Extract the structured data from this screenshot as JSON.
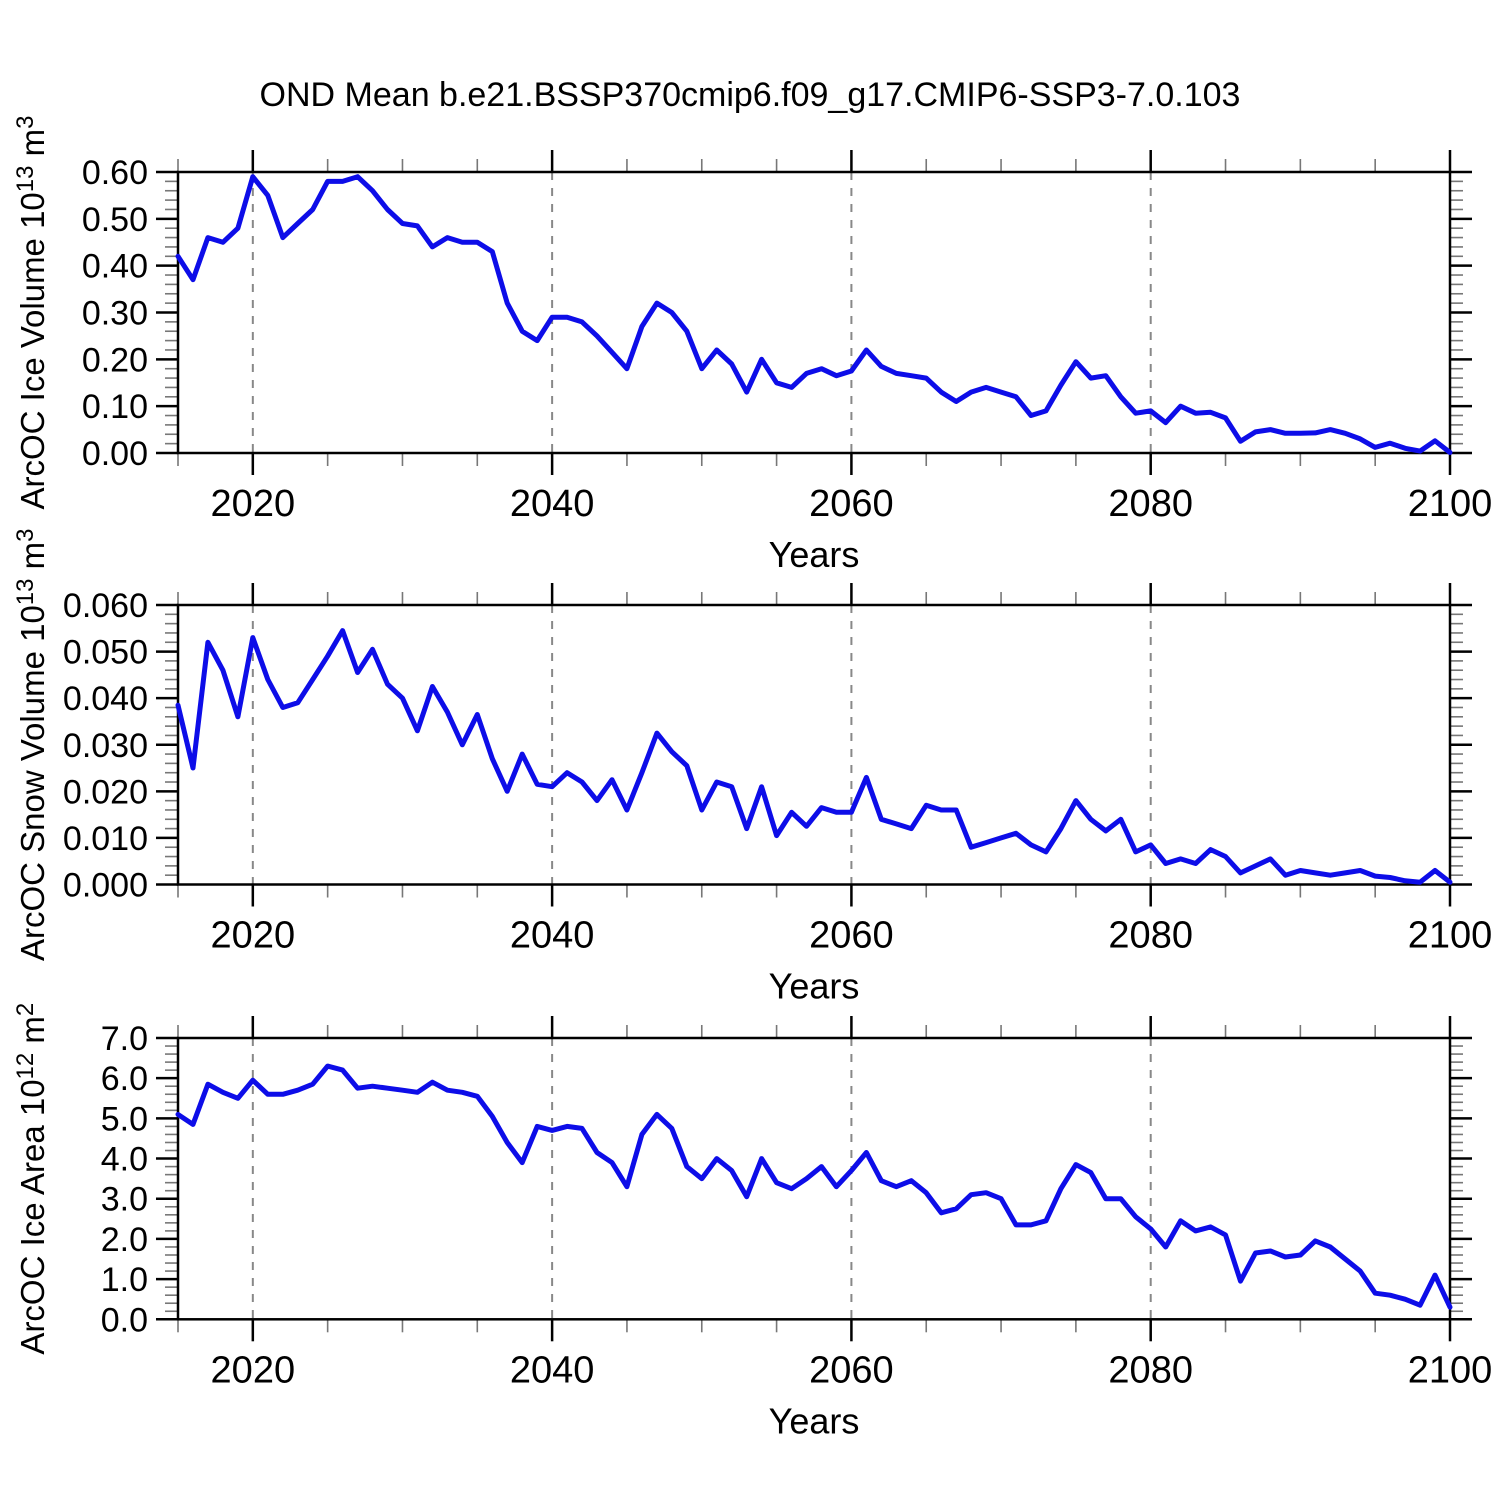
{
  "title": "OND Mean b.e21.BSSP370cmip6.f09_g17.CMIP6-SSP3-7.0.103",
  "colors": {
    "line": "#0d0de8",
    "grid": "#888888",
    "axis": "#000000",
    "minor_tick": "#777777",
    "background": "#ffffff"
  },
  "chart_data": [
    {
      "id": "ice-volume",
      "type": "line",
      "title": "",
      "xlabel": "Years",
      "ylabel": "ArcOC Ice Volume 10¹³ m³",
      "ylabel_segments": [
        {
          "t": "ArcOC Ice Volume 10"
        },
        {
          "t": "13",
          "sup": true
        },
        {
          "t": " m"
        },
        {
          "t": "3",
          "sup": true
        }
      ],
      "xlim": [
        2015,
        2100
      ],
      "ylim": [
        0.0,
        0.6
      ],
      "xticks": [
        2020,
        2040,
        2060,
        2080,
        2100
      ],
      "xtick_labels": [
        "2020",
        "2040",
        "2060",
        "2080",
        "2100"
      ],
      "xtick_minor_step": 5,
      "ytick_step": 0.1,
      "ytick_labels": [
        "0.00",
        "0.10",
        "0.20",
        "0.30",
        "0.40",
        "0.50",
        "0.60"
      ],
      "gridlines_x": [
        2020,
        2040,
        2060,
        2080
      ],
      "grid": "vertical-dashed",
      "legend": "none",
      "x_start": 2015,
      "x_step": 1,
      "values": [
        0.42,
        0.37,
        0.46,
        0.45,
        0.48,
        0.59,
        0.55,
        0.46,
        0.49,
        0.52,
        0.58,
        0.58,
        0.59,
        0.56,
        0.52,
        0.49,
        0.485,
        0.44,
        0.46,
        0.45,
        0.45,
        0.43,
        0.32,
        0.26,
        0.24,
        0.29,
        0.29,
        0.28,
        0.25,
        0.215,
        0.18,
        0.27,
        0.32,
        0.3,
        0.26,
        0.18,
        0.22,
        0.19,
        0.13,
        0.2,
        0.15,
        0.14,
        0.17,
        0.18,
        0.165,
        0.175,
        0.22,
        0.185,
        0.17,
        0.165,
        0.16,
        0.13,
        0.11,
        0.13,
        0.14,
        0.13,
        0.12,
        0.08,
        0.09,
        0.145,
        0.195,
        0.16,
        0.165,
        0.12,
        0.085,
        0.09,
        0.065,
        0.1,
        0.085,
        0.087,
        0.075,
        0.025,
        0.045,
        0.05,
        0.042,
        0.042,
        0.043,
        0.05,
        0.042,
        0.03,
        0.012,
        0.021,
        0.01,
        0.004,
        0.026,
        0.001
      ]
    },
    {
      "id": "snow-volume",
      "type": "line",
      "title": "",
      "xlabel": "Years",
      "ylabel": "ArcOC Snow Volume 10¹³ m³",
      "ylabel_segments": [
        {
          "t": "ArcOC Snow Volume 10"
        },
        {
          "t": "13",
          "sup": true
        },
        {
          "t": " m"
        },
        {
          "t": "3",
          "sup": true
        }
      ],
      "xlim": [
        2015,
        2100
      ],
      "ylim": [
        0.0,
        0.06
      ],
      "xticks": [
        2020,
        2040,
        2060,
        2080,
        2100
      ],
      "xtick_labels": [
        "2020",
        "2040",
        "2060",
        "2080",
        "2100"
      ],
      "xtick_minor_step": 5,
      "ytick_step": 0.01,
      "ytick_labels": [
        "0.000",
        "0.010",
        "0.020",
        "0.030",
        "0.040",
        "0.050",
        "0.060"
      ],
      "gridlines_x": [
        2020,
        2040,
        2060,
        2080
      ],
      "grid": "vertical-dashed",
      "legend": "none",
      "x_start": 2015,
      "x_step": 1,
      "values": [
        0.0385,
        0.025,
        0.052,
        0.046,
        0.036,
        0.053,
        0.044,
        0.038,
        0.039,
        0.044,
        0.049,
        0.0545,
        0.0455,
        0.0505,
        0.043,
        0.04,
        0.033,
        0.0425,
        0.037,
        0.03,
        0.0365,
        0.027,
        0.02,
        0.028,
        0.0215,
        0.021,
        0.024,
        0.022,
        0.018,
        0.0225,
        0.016,
        0.024,
        0.0325,
        0.0285,
        0.0255,
        0.016,
        0.022,
        0.021,
        0.012,
        0.021,
        0.0105,
        0.0155,
        0.0125,
        0.0165,
        0.0155,
        0.0155,
        0.023,
        0.014,
        0.013,
        0.012,
        0.017,
        0.016,
        0.016,
        0.008,
        0.009,
        0.01,
        0.011,
        0.0085,
        0.007,
        0.012,
        0.018,
        0.014,
        0.0115,
        0.014,
        0.007,
        0.0085,
        0.0045,
        0.0055,
        0.0045,
        0.0075,
        0.006,
        0.0025,
        0.004,
        0.0055,
        0.002,
        0.003,
        0.0025,
        0.002,
        0.0025,
        0.003,
        0.0018,
        0.0015,
        0.0008,
        0.0005,
        0.003,
        0.0005
      ]
    },
    {
      "id": "ice-area",
      "type": "line",
      "title": "",
      "xlabel": "Years",
      "ylabel": "ArcOC Ice Area 10¹² m²",
      "ylabel_segments": [
        {
          "t": "ArcOC Ice Area 10"
        },
        {
          "t": "12",
          "sup": true
        },
        {
          "t": " m"
        },
        {
          "t": "2",
          "sup": true
        }
      ],
      "xlim": [
        2015,
        2100
      ],
      "ylim": [
        0.0,
        7.0
      ],
      "xticks": [
        2020,
        2040,
        2060,
        2080,
        2100
      ],
      "xtick_labels": [
        "2020",
        "2040",
        "2060",
        "2080",
        "2100"
      ],
      "xtick_minor_step": 5,
      "ytick_step": 1.0,
      "ytick_labels": [
        "0.0",
        "1.0",
        "2.0",
        "3.0",
        "4.0",
        "5.0",
        "6.0",
        "7.0"
      ],
      "gridlines_x": [
        2020,
        2040,
        2060,
        2080
      ],
      "grid": "vertical-dashed",
      "legend": "none",
      "x_start": 2015,
      "x_step": 1,
      "values": [
        5.1,
        4.85,
        5.85,
        5.65,
        5.5,
        5.95,
        5.6,
        5.6,
        5.7,
        5.85,
        6.3,
        6.2,
        5.75,
        5.8,
        5.75,
        5.7,
        5.65,
        5.9,
        5.7,
        5.65,
        5.55,
        5.05,
        4.4,
        3.9,
        4.8,
        4.7,
        4.8,
        4.75,
        4.15,
        3.9,
        3.3,
        4.6,
        5.1,
        4.75,
        3.8,
        3.5,
        4.0,
        3.7,
        3.05,
        4.0,
        3.4,
        3.25,
        3.5,
        3.8,
        3.3,
        3.7,
        4.15,
        3.45,
        3.3,
        3.45,
        3.15,
        2.65,
        2.75,
        3.1,
        3.15,
        3.0,
        2.35,
        2.35,
        2.45,
        3.25,
        3.85,
        3.65,
        3.0,
        3.0,
        2.55,
        2.25,
        1.8,
        2.45,
        2.2,
        2.3,
        2.1,
        0.95,
        1.65,
        1.7,
        1.55,
        1.6,
        1.95,
        1.8,
        1.5,
        1.2,
        0.65,
        0.6,
        0.5,
        0.35,
        1.1,
        0.3
      ]
    }
  ]
}
